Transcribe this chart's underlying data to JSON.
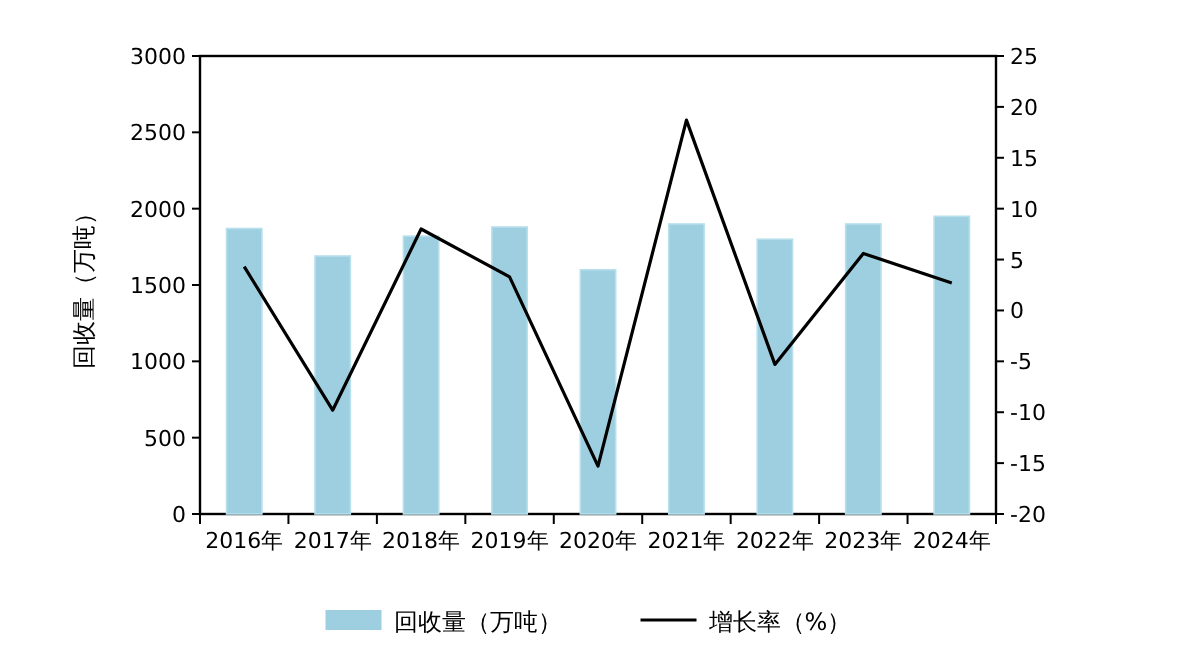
{
  "chart_data": {
    "type": "bar",
    "ylabel": "回收量（万吨）",
    "categories": [
      "2016年",
      "2017年",
      "2018年",
      "2019年",
      "2020年",
      "2021年",
      "2022年",
      "2023年",
      "2024年"
    ],
    "series": [
      {
        "name": "回收量（万吨）",
        "color": "#9ecfe0",
        "values": [
          1870,
          1690,
          1820,
          1880,
          1600,
          1900,
          1800,
          1900,
          1950
        ]
      },
      {
        "name": "增长率（%）",
        "type": "line",
        "axis": "y2",
        "color": "#000000",
        "values": [
          4.3,
          -9.8,
          8.0,
          3.3,
          -15.3,
          18.7,
          -5.3,
          5.6,
          2.7
        ]
      }
    ],
    "ylim": [
      0,
      3000
    ],
    "yticks": [
      0,
      500,
      1000,
      1500,
      2000,
      2500,
      3000
    ],
    "y2lim": [
      -20,
      25
    ],
    "y2ticks": [
      -20,
      -15,
      -10,
      -5,
      0,
      5,
      10,
      15,
      20,
      25
    ],
    "legend": "bottom"
  }
}
